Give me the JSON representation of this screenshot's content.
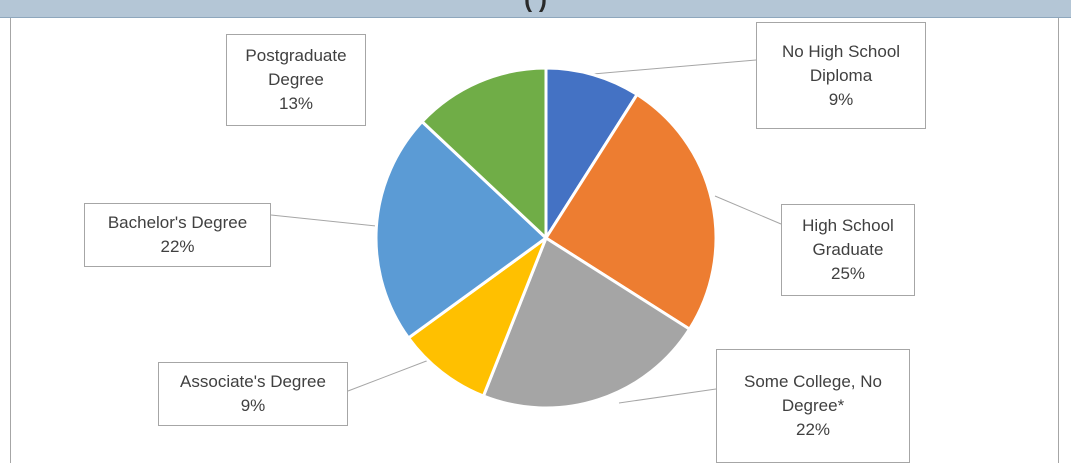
{
  "header": {
    "title": "(                )"
  },
  "colors": {
    "header_band": "#b4c6d6",
    "callout_border": "#a6a6a6",
    "leader_line": "#a6a6a6",
    "label_text": "#404040"
  },
  "chart_data": {
    "type": "pie",
    "title": "",
    "categories": [
      "No High School Diploma",
      "High School Graduate",
      "Some College, No Degree*",
      "Associate's Degree",
      "Bachelor's Degree",
      "Postgraduate Degree"
    ],
    "values": [
      9,
      25,
      22,
      9,
      22,
      13
    ],
    "value_unit": "%",
    "slices": [
      {
        "label_lines": [
          "No High School",
          "Diploma"
        ],
        "pct_text": "9%",
        "value": 9,
        "color": "#4472c4"
      },
      {
        "label_lines": [
          "High School",
          "Graduate"
        ],
        "pct_text": "25%",
        "value": 25,
        "color": "#ed7d31"
      },
      {
        "label_lines": [
          "Some College, No",
          "Degree*"
        ],
        "pct_text": "22%",
        "value": 22,
        "color": "#a5a5a5"
      },
      {
        "label_lines": [
          "Associate's Degree"
        ],
        "pct_text": "9%",
        "value": 9,
        "color": "#ffc000"
      },
      {
        "label_lines": [
          "Bachelor's Degree"
        ],
        "pct_text": "22%",
        "value": 22,
        "color": "#5b9bd5"
      },
      {
        "label_lines": [
          "Postgraduate",
          "Degree"
        ],
        "pct_text": "13%",
        "value": 13,
        "color": "#70ad47"
      }
    ],
    "start_angle_deg": 0,
    "direction": "clockwise",
    "legend": "none",
    "data_labels": "callouts-with-leader-lines"
  }
}
